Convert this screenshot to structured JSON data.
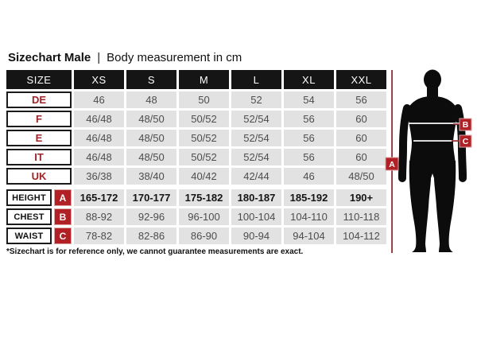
{
  "title": {
    "main": "Sizechart Male",
    "separator": "|",
    "subtitle": "Body measurement in cm"
  },
  "table": {
    "header": [
      "SIZE",
      "XS",
      "S",
      "M",
      "L",
      "XL",
      "XXL"
    ],
    "size_rows": [
      {
        "label": "DE",
        "values": [
          "46",
          "48",
          "50",
          "52",
          "54",
          "56"
        ]
      },
      {
        "label": "F",
        "values": [
          "46/48",
          "48/50",
          "50/52",
          "52/54",
          "56",
          "60"
        ]
      },
      {
        "label": "E",
        "values": [
          "46/48",
          "48/50",
          "50/52",
          "52/54",
          "56",
          "60"
        ]
      },
      {
        "label": "IT",
        "values": [
          "46/48",
          "48/50",
          "50/52",
          "52/54",
          "56",
          "60"
        ]
      },
      {
        "label": "UK",
        "values": [
          "36/38",
          "38/40",
          "40/42",
          "42/44",
          "46",
          "48/50"
        ]
      }
    ],
    "body_rows": [
      {
        "label": "HEIGHT",
        "badge": "A",
        "bold": true,
        "values": [
          "165-172",
          "170-177",
          "175-182",
          "180-187",
          "185-192",
          "190+"
        ]
      },
      {
        "label": "CHEST",
        "badge": "B",
        "bold": false,
        "values": [
          "88-92",
          "92-96",
          "96-100",
          "100-104",
          "104-110",
          "110-118"
        ]
      },
      {
        "label": "WAIST",
        "badge": "C",
        "bold": false,
        "values": [
          "78-82",
          "82-86",
          "86-90",
          "90-94",
          "94-104",
          "104-112"
        ]
      }
    ]
  },
  "footnote": "*Sizechart is for reference only, we cannot guarantee measurements are exact.",
  "figure": {
    "labels": {
      "height": "A",
      "chest": "B",
      "waist": "C"
    }
  },
  "colors": {
    "accent_red": "#9f2227",
    "badge_red": "#b02025",
    "badge_border": "#dca6a6",
    "measure_line_red": "#8e1f22",
    "header_black": "#151515",
    "cell_gray": "#e2e2e2",
    "cell_text": "#4d4d4d",
    "silhouette_black": "#0c0c0c"
  }
}
